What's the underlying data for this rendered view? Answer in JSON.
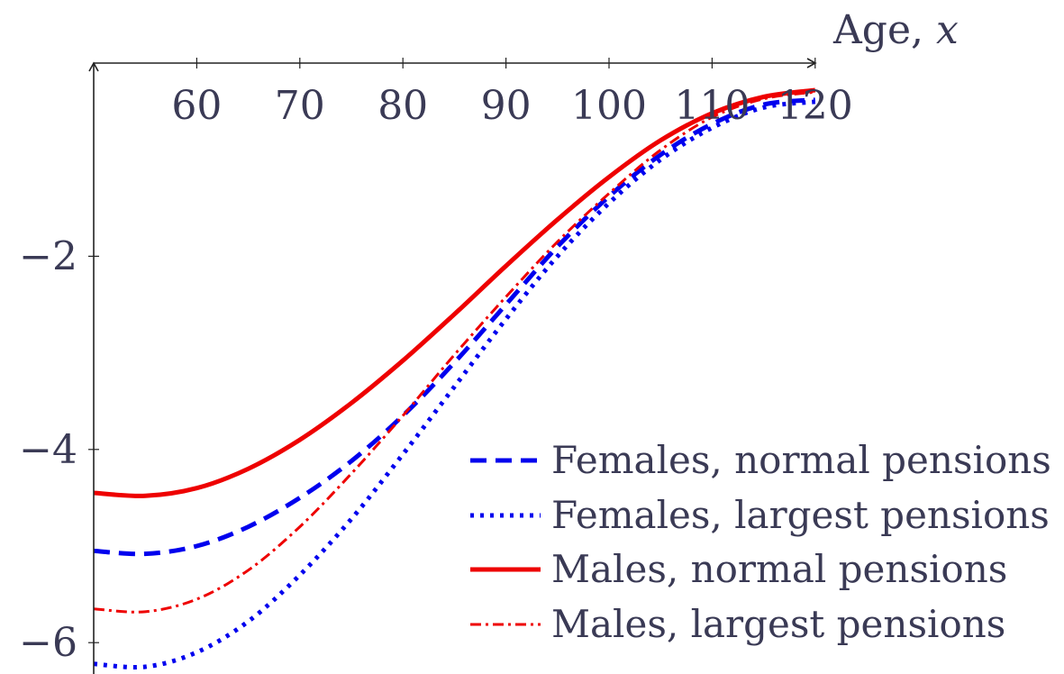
{
  "chart_data": {
    "type": "line",
    "xlabel": "Age, ",
    "xlabel_var": "x",
    "ylabel": "",
    "xlim": [
      50,
      120
    ],
    "ylim": [
      -6.2,
      -0.1
    ],
    "x_ticks": [
      60,
      70,
      80,
      90,
      100,
      110,
      120
    ],
    "y_ticks": [
      -2,
      -4,
      -6
    ],
    "x_tick_labels": [
      "60",
      "70",
      "80",
      "90",
      "100",
      "110",
      "120"
    ],
    "y_tick_labels": [
      "−2",
      "−4",
      "−6"
    ],
    "grid": false,
    "legend_position": "bottom-right",
    "x": [
      50,
      55,
      60,
      65,
      70,
      75,
      80,
      85,
      90,
      95,
      100,
      105,
      110,
      115,
      120
    ],
    "series": [
      {
        "name": "Females, normal pensions",
        "color": "#0000ee",
        "dash": "dashed",
        "values": [
          -5.05,
          -5.08,
          -5.0,
          -4.8,
          -4.5,
          -4.12,
          -3.65,
          -3.1,
          -2.5,
          -1.9,
          -1.38,
          -0.95,
          -0.63,
          -0.43,
          -0.38
        ]
      },
      {
        "name": "Females, largest pensions",
        "color": "#0000ee",
        "dash": "dotted",
        "values": [
          -6.22,
          -6.25,
          -6.1,
          -5.78,
          -5.3,
          -4.72,
          -4.05,
          -3.35,
          -2.65,
          -2.0,
          -1.45,
          -1.0,
          -0.67,
          -0.46,
          -0.4
        ]
      },
      {
        "name": "Males, normal pensions",
        "color": "#ee0000",
        "dash": "solid",
        "values": [
          -4.45,
          -4.48,
          -4.4,
          -4.2,
          -3.9,
          -3.52,
          -3.08,
          -2.6,
          -2.1,
          -1.62,
          -1.18,
          -0.8,
          -0.52,
          -0.35,
          -0.28
        ]
      },
      {
        "name": "Males, largest pensions",
        "color": "#ee0000",
        "dash": "dashdot",
        "values": [
          -5.65,
          -5.68,
          -5.55,
          -5.25,
          -4.8,
          -4.25,
          -3.65,
          -3.02,
          -2.42,
          -1.85,
          -1.35,
          -0.9,
          -0.56,
          -0.37,
          -0.3
        ]
      }
    ]
  }
}
